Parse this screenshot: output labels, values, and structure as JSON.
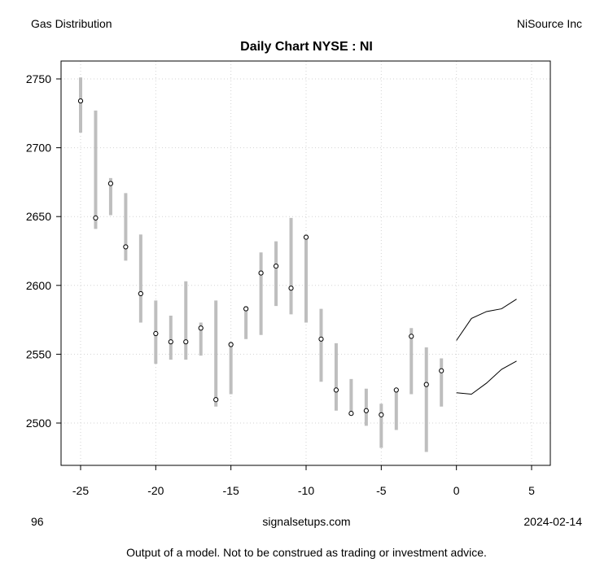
{
  "header": {
    "sector": "Gas Distribution",
    "company": "NiSource Inc"
  },
  "footer": {
    "left": "96",
    "center": "signalsetups.com",
    "right": "2024-02-14",
    "disclaimer": "Output of a model.  Not to be construed as trading or investment advice."
  },
  "colors": {
    "range_bar": "#bebebe",
    "forecast": "#000000",
    "grid": "#d3d3d3"
  },
  "chart_data": {
    "type": "candlestick-range",
    "title": "Daily Chart NYSE : NI",
    "xlim": [
      -26,
      6
    ],
    "ylim": [
      2468,
      2764
    ],
    "xticks": [
      -25,
      -20,
      -15,
      -10,
      -5,
      0,
      5
    ],
    "yticks": [
      2500,
      2550,
      2600,
      2650,
      2700,
      2750
    ],
    "grid": true,
    "bars": [
      {
        "x": -25,
        "low": 2711,
        "high": 2751,
        "close": 2734
      },
      {
        "x": -24,
        "low": 2641,
        "high": 2727,
        "close": 2649
      },
      {
        "x": -23,
        "low": 2651,
        "high": 2678,
        "close": 2674
      },
      {
        "x": -22,
        "low": 2618,
        "high": 2667,
        "close": 2628
      },
      {
        "x": -21,
        "low": 2573,
        "high": 2637,
        "close": 2594
      },
      {
        "x": -20,
        "low": 2543,
        "high": 2589,
        "close": 2565
      },
      {
        "x": -19,
        "low": 2546,
        "high": 2578,
        "close": 2559
      },
      {
        "x": -18,
        "low": 2546,
        "high": 2603,
        "close": 2559
      },
      {
        "x": -17,
        "low": 2549,
        "high": 2573,
        "close": 2569
      },
      {
        "x": -16,
        "low": 2512,
        "high": 2589,
        "close": 2517
      },
      {
        "x": -15,
        "low": 2521,
        "high": 2559,
        "close": 2557
      },
      {
        "x": -14,
        "low": 2561,
        "high": 2585,
        "close": 2583
      },
      {
        "x": -13,
        "low": 2564,
        "high": 2624,
        "close": 2609
      },
      {
        "x": -12,
        "low": 2585,
        "high": 2632,
        "close": 2614
      },
      {
        "x": -11,
        "low": 2579,
        "high": 2649,
        "close": 2598
      },
      {
        "x": -10,
        "low": 2573,
        "high": 2637,
        "close": 2635
      },
      {
        "x": -9,
        "low": 2530,
        "high": 2583,
        "close": 2561
      },
      {
        "x": -8,
        "low": 2509,
        "high": 2558,
        "close": 2524
      },
      {
        "x": -7,
        "low": 2506,
        "high": 2532,
        "close": 2507
      },
      {
        "x": -6,
        "low": 2498,
        "high": 2525,
        "close": 2509
      },
      {
        "x": -5,
        "low": 2482,
        "high": 2514,
        "close": 2506
      },
      {
        "x": -4,
        "low": 2495,
        "high": 2525,
        "close": 2524
      },
      {
        "x": -3,
        "low": 2521,
        "high": 2569,
        "close": 2563
      },
      {
        "x": -2,
        "low": 2479,
        "high": 2555,
        "close": 2528
      },
      {
        "x": -1,
        "low": 2512,
        "high": 2547,
        "close": 2538
      }
    ],
    "forecast_upper": {
      "x": [
        0,
        1,
        2,
        3,
        4
      ],
      "y": [
        2560,
        2576,
        2581,
        2583,
        2590
      ]
    },
    "forecast_lower": {
      "x": [
        0,
        1,
        2,
        3,
        4
      ],
      "y": [
        2522,
        2521,
        2529,
        2539,
        2545
      ]
    }
  }
}
